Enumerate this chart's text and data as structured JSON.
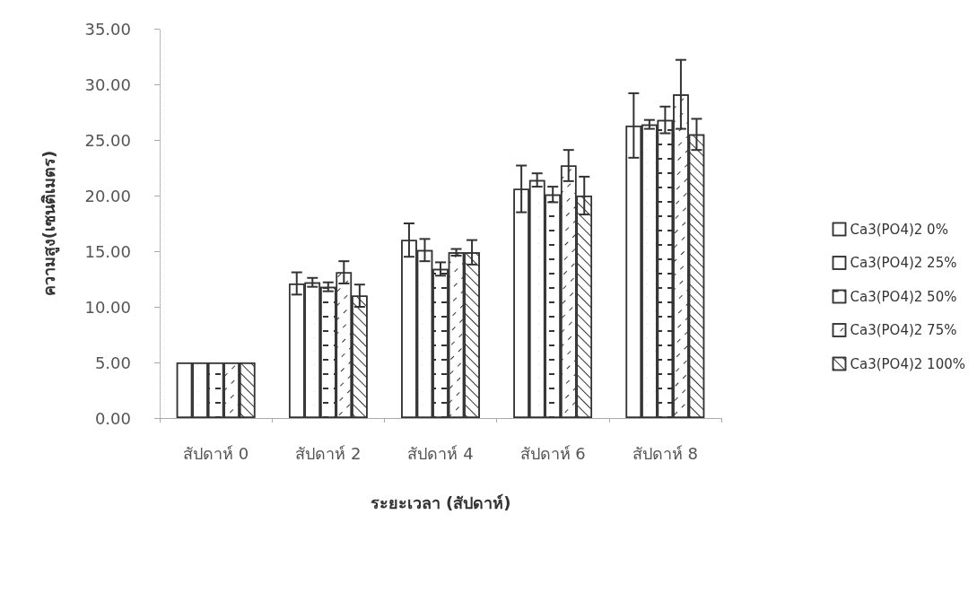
{
  "chart_data": {
    "type": "bar",
    "xlabel": "ระยะเวลา (สัปดาห์)",
    "ylabel": "ความสูง(เซนติเมตร)",
    "categories": [
      "สัปดาห์ 0",
      "สัปดาห์ 2",
      "สัปดาห์ 4",
      "สัปดาห์ 6",
      "สัปดาห์ 8"
    ],
    "series": [
      {
        "name": "Ca3(PO4)2 0%",
        "color": "#ffffff",
        "values": [
          5.0,
          12.1,
          16.0,
          20.6,
          26.3
        ],
        "errors": [
          null,
          1.0,
          1.5,
          2.1,
          2.9
        ]
      },
      {
        "name": "Ca3(PO4)2 25%",
        "color": "#ffffff",
        "values": [
          5.0,
          12.2,
          15.1,
          21.4,
          26.4
        ],
        "errors": [
          null,
          0.4,
          1.0,
          0.6,
          0.4
        ]
      },
      {
        "name": "Ca3(PO4)2 50%",
        "color": "#ffffff",
        "values": [
          5.0,
          11.8,
          13.4,
          20.1,
          26.8
        ],
        "errors": [
          null,
          0.4,
          0.6,
          0.7,
          1.2
        ]
      },
      {
        "name": "Ca3(PO4)2 75%",
        "color": "#ffffff",
        "values": [
          5.0,
          13.1,
          14.9,
          22.7,
          29.1
        ],
        "errors": [
          null,
          1.0,
          0.3,
          1.4,
          3.1
        ]
      },
      {
        "name": "Ca3(PO4)2 100%",
        "color": "#ffffff",
        "values": [
          5.0,
          11.0,
          14.9,
          20.0,
          25.5
        ],
        "errors": [
          null,
          1.0,
          1.1,
          1.7,
          1.4
        ]
      }
    ],
    "ylim": [
      0,
      35
    ],
    "yticks": [
      {
        "value": 0,
        "label": "0.00"
      },
      {
        "value": 5,
        "label": "5.00"
      },
      {
        "value": 10,
        "label": "10.00"
      },
      {
        "value": 15,
        "label": "15.00"
      },
      {
        "value": 20,
        "label": "20.00"
      },
      {
        "value": 25,
        "label": "25.00"
      },
      {
        "value": 30,
        "label": "30.00"
      },
      {
        "value": 35,
        "label": "35.00"
      }
    ],
    "grid": false,
    "legend": "right"
  }
}
